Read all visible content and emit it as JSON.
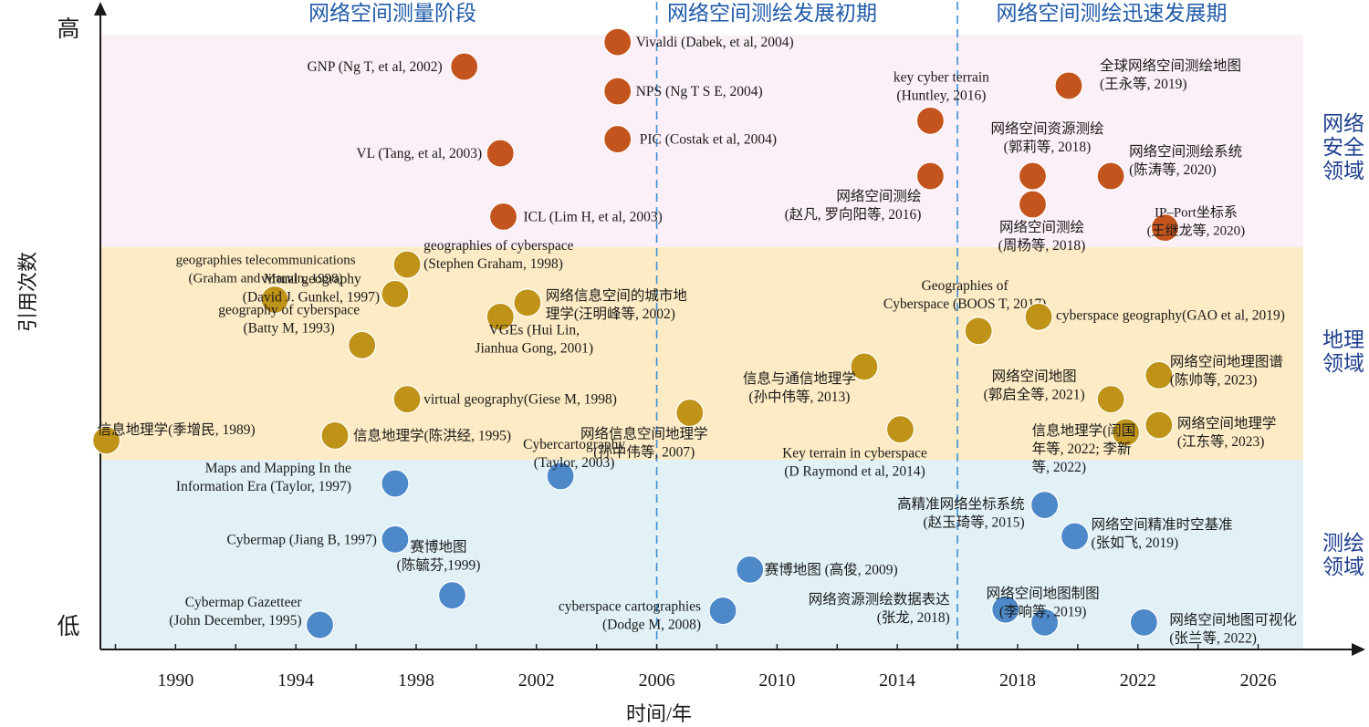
{
  "chart_data": {
    "type": "scatter",
    "xlabel": "时间/年",
    "ylabel": "引用次数",
    "y_axis_high": "高",
    "y_axis_low": "低",
    "x_ticks": [
      1990,
      1994,
      1998,
      2002,
      2006,
      2010,
      2014,
      2018,
      2022,
      2026
    ],
    "xlim": [
      1987.5,
      2027.5
    ],
    "phase_dividers": [
      2006,
      2016
    ],
    "phases": [
      {
        "label": "网络空间测量阶段",
        "from": 1987.5,
        "to": 2006
      },
      {
        "label": "网络空间测绘发展初期",
        "from": 2006,
        "to": 2016
      },
      {
        "label": "网络空间测绘迅速发展期",
        "from": 2016,
        "to": 2027.5
      }
    ],
    "bands": [
      {
        "label": "网络安全领域",
        "label_lines": [
          "网络",
          "安全",
          "领域"
        ],
        "color": "#fbeff8",
        "point_color": "#c4541e"
      },
      {
        "label": "地理领域",
        "label_lines": [
          "地理",
          "领域"
        ],
        "color": "#fcebc4",
        "point_color": "#bf9318"
      },
      {
        "label": "测绘领域",
        "label_lines": [
          "测绘",
          "领域"
        ],
        "color": "#e2f1f6",
        "point_color": "#4d88c9"
      }
    ],
    "series": [
      {
        "band": 0,
        "points": [
          {
            "x": 1999.6,
            "y": 0.948,
            "label_lines": [
              "GNP  (Ng T, et al, 2002)"
            ]
          },
          {
            "x": 2004.7,
            "y": 0.988,
            "label_lines": [
              "Vivaldi (Dabek, et al, 2004)"
            ]
          },
          {
            "x": 2004.7,
            "y": 0.908,
            "label_lines": [
              "NPS (Ng T S E, 2004)"
            ]
          },
          {
            "x": 2004.7,
            "y": 0.83,
            "label_lines": [
              "PIC  (Costak et al, 2004)"
            ]
          },
          {
            "x": 2000.8,
            "y": 0.807,
            "label_lines": [
              "VL (Tang, et al, 2003)"
            ]
          },
          {
            "x": 2000.9,
            "y": 0.704,
            "label_lines": [
              "ICL (Lim H, et al, 2003)"
            ]
          },
          {
            "x": 2015.1,
            "y": 0.86,
            "label_lines": [
              "key cyber terrain",
              "(Huntley, 2016)"
            ]
          },
          {
            "x": 2015.1,
            "y": 0.77,
            "label_lines": [
              "网络空间测绘",
              "(赵凡, 罗向阳等, 2016)"
            ]
          },
          {
            "x": 2019.7,
            "y": 0.917,
            "label_lines": [
              "全球网络空间测绘地图",
              "(王永等, 2019)"
            ]
          },
          {
            "x": 2018.5,
            "y": 0.77,
            "label_lines": [
              "网络空间资源测绘",
              "(郭莉等, 2018)"
            ]
          },
          {
            "x": 2018.5,
            "y": 0.724,
            "label_lines": [
              "网络空间测绘",
              "(周杨等, 2018)"
            ]
          },
          {
            "x": 2021.1,
            "y": 0.77,
            "label_lines": [
              "网络空间测绘系统",
              "(陈涛等, 2020)"
            ]
          },
          {
            "x": 2022.9,
            "y": 0.686,
            "label_lines": [
              "IP–Port坐标系",
              "(王继龙等, 2020)"
            ]
          }
        ]
      },
      {
        "band": 1,
        "points": [
          {
            "x": 1987.7,
            "y": 0.34,
            "label_lines": [
              "信息地理学(季增民, 1989)"
            ]
          },
          {
            "x": 1993.3,
            "y": 0.569,
            "label_lines": [
              "geographies telecommunications",
              "(Graham and Marvin, 1998)"
            ]
          },
          {
            "x": 1996.2,
            "y": 0.495,
            "label_lines": [
              "geography of cyberspace",
              "(Batty M, 1993)"
            ]
          },
          {
            "x": 1997.3,
            "y": 0.578,
            "label_lines": [
              "virtual geography",
              "(David J. Gunkel, 1997)"
            ]
          },
          {
            "x": 1997.7,
            "y": 0.626,
            "label_lines": [
              "geographies of cyberspace",
              "(Stephen Graham, 1998)"
            ]
          },
          {
            "x": 1997.7,
            "y": 0.407,
            "label_lines": [
              "virtual geography(Giese M, 1998)"
            ]
          },
          {
            "x": 1995.3,
            "y": 0.348,
            "label_lines": [
              "信息地理学(陈洪经, 1995)"
            ]
          },
          {
            "x": 2000.8,
            "y": 0.541,
            "label_lines": [
              "VGEs (Hui Lin,",
              "Jianhua Gong, 2001)"
            ]
          },
          {
            "x": 2001.7,
            "y": 0.564,
            "label_lines": [
              "网络信息空间的城市地",
              "理学(汪明峰等, 2002)"
            ]
          },
          {
            "x": 2007.1,
            "y": 0.385,
            "label_lines": [
              "网络信息空间地理学",
              "(孙中伟等, 2007)"
            ]
          },
          {
            "x": 2012.9,
            "y": 0.46,
            "label_lines": [
              "信息与通信地理学",
              "(孙中伟等, 2013)"
            ]
          },
          {
            "x": 2014.1,
            "y": 0.358,
            "label_lines": [
              "Key terrain in cyberspace",
              "(D Raymond et al, 2014)"
            ]
          },
          {
            "x": 2016.7,
            "y": 0.518,
            "label_lines": [
              "Geographies of",
              "Cyberspace (BOOS T, 2017)"
            ]
          },
          {
            "x": 2018.7,
            "y": 0.541,
            "label_lines": [
              "cyberspace geography(GAO  et al, 2019)"
            ]
          },
          {
            "x": 2022.7,
            "y": 0.446,
            "label_lines": [
              "网络空间地理图谱",
              "(陈帅等, 2023)"
            ]
          },
          {
            "x": 2021.1,
            "y": 0.407,
            "label_lines": [
              "网络空间地图",
              "(郭启全等, 2021)"
            ]
          },
          {
            "x": 2021.6,
            "y": 0.353,
            "label_lines": [
              "信息地理学(闫国",
              "年等, 2022; 李新",
              "等, 2022)"
            ]
          },
          {
            "x": 2022.7,
            "y": 0.365,
            "label_lines": [
              "网络空间地理学",
              "(江东等, 2023)"
            ]
          }
        ]
      },
      {
        "band": 2,
        "points": [
          {
            "x": 1997.3,
            "y": 0.27,
            "label_lines": [
              "Maps and Mapping In the",
              "Information Era (Taylor, 1997)"
            ]
          },
          {
            "x": 1997.3,
            "y": 0.179,
            "label_lines": [
              "Cybermap (Jiang B, 1997)"
            ]
          },
          {
            "x": 1994.8,
            "y": 0.04,
            "label_lines": [
              "Cybermap Gazetteer",
              "(John December, 1995)"
            ]
          },
          {
            "x": 1999.2,
            "y": 0.088,
            "label_lines": [
              "赛博地图",
              "(陈毓芬,1999)"
            ]
          },
          {
            "x": 2002.8,
            "y": 0.282,
            "label_lines": [
              "Cybercartography",
              "(Taylor, 2003)"
            ]
          },
          {
            "x": 2008.2,
            "y": 0.063,
            "label_lines": [
              "cyberspace  cartographies",
              "(Dodge M, 2008)"
            ]
          },
          {
            "x": 2009.1,
            "y": 0.13,
            "label_lines": [
              "赛博地图 (高俊, 2009)"
            ]
          },
          {
            "x": 2018.9,
            "y": 0.235,
            "label_lines": [
              "高精准网络坐标系统",
              "(赵玉琦等, 2015)"
            ]
          },
          {
            "x": 2019.9,
            "y": 0.184,
            "label_lines": [
              "网络空间精准时空基准",
              "(张如飞, 2019)"
            ]
          },
          {
            "x": 2017.6,
            "y": 0.065,
            "label_lines": [
              "网络资源测绘数据表达",
              "(张龙, 2018)"
            ]
          },
          {
            "x": 2018.9,
            "y": 0.044,
            "label_lines": [
              "网络空间地图制图",
              "(李响等, 2019)"
            ]
          },
          {
            "x": 2022.2,
            "y": 0.044,
            "label_lines": [
              "网络空间地图可视化",
              "(张兰等, 2022)"
            ]
          }
        ]
      }
    ]
  }
}
